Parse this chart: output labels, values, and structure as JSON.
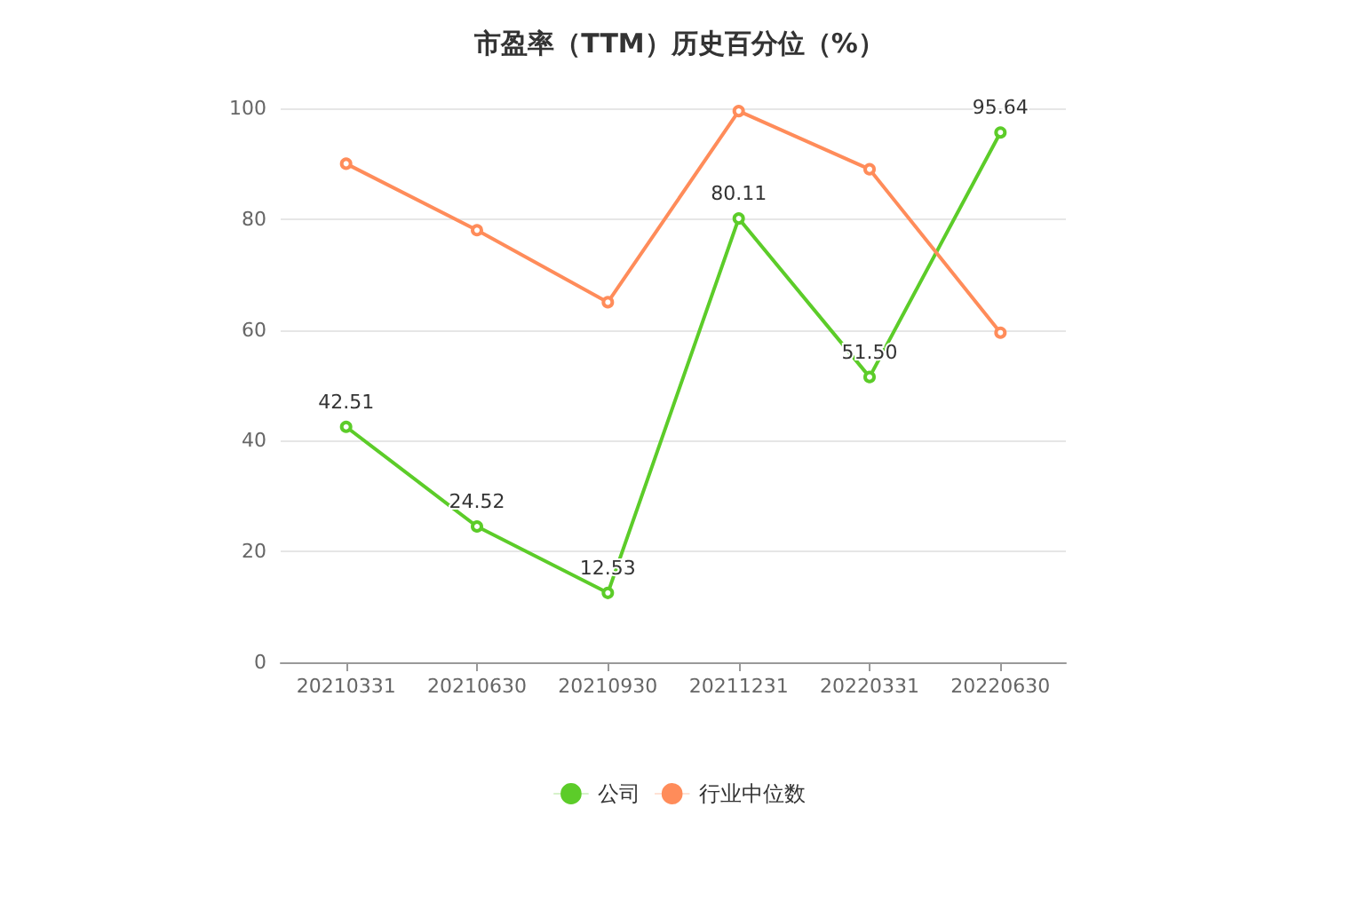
{
  "chart_data": {
    "type": "line",
    "title": "市盈率（TTM）历史百分位（%）",
    "categories": [
      "20210331",
      "20210630",
      "20210930",
      "20211231",
      "20220331",
      "20220630"
    ],
    "series": [
      {
        "name": "公司",
        "color": "#5ccc29",
        "values": [
          42.51,
          24.52,
          12.53,
          80.11,
          51.5,
          95.64
        ],
        "value_labels": [
          "42.51",
          "24.52",
          "12.53",
          "80.11",
          "51.50",
          "95.64"
        ]
      },
      {
        "name": "行业中位数",
        "color": "#ff8c5a",
        "values": [
          90,
          78,
          65,
          99.5,
          89,
          59.5
        ]
      }
    ],
    "ylim": [
      0,
      100
    ],
    "yticks": [
      0,
      20,
      40,
      60,
      80,
      100
    ],
    "grid": "y",
    "legend": "bottom",
    "marker": "circle",
    "line_style": "solid"
  }
}
